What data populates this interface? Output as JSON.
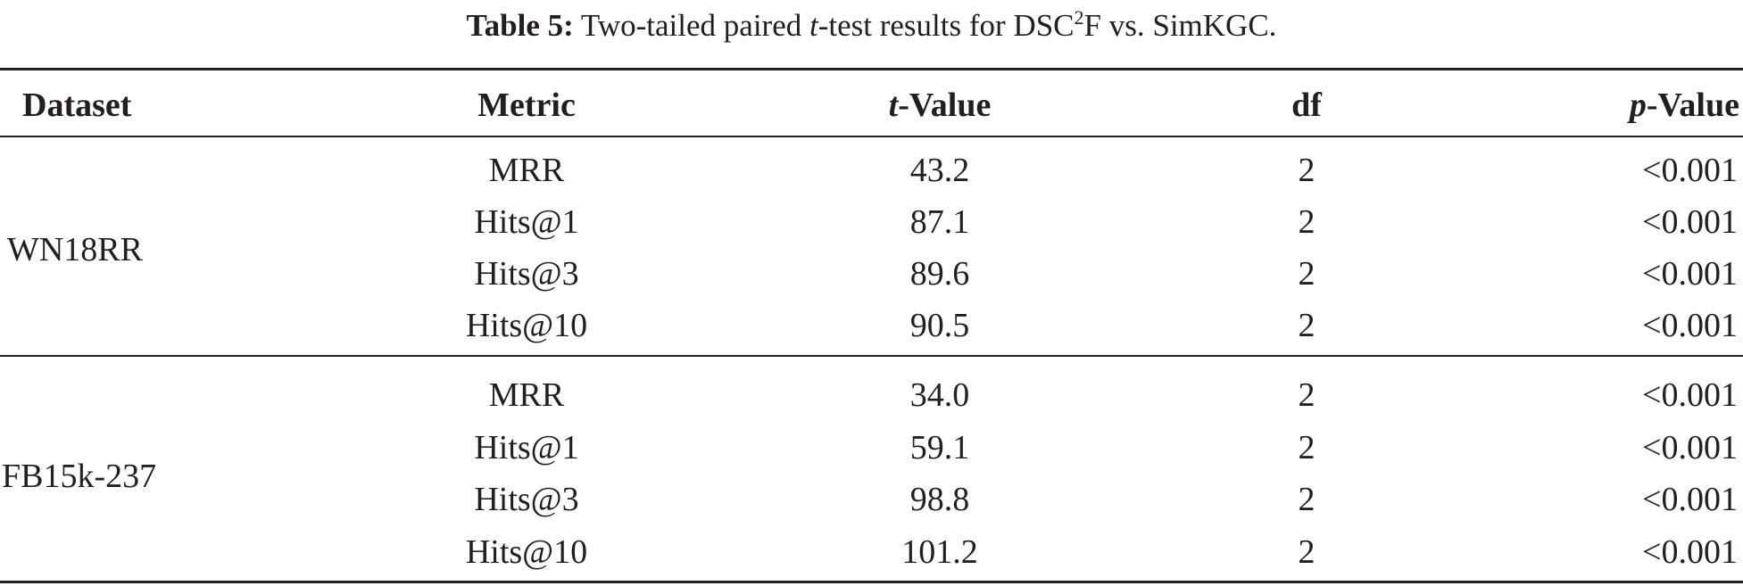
{
  "caption": {
    "label": "Table 5:",
    "text_before_italic": " Two-tailed paired ",
    "italic": "t",
    "text_after_italic": "-test results for DSC",
    "superscript": "2",
    "text_end": "F vs. SimKGC."
  },
  "table": {
    "headers": {
      "dataset": "Dataset",
      "metric": "Metric",
      "t_value_italic": "t",
      "t_value_rest": "-Value",
      "df": "df",
      "p_value_italic": "p",
      "p_value_rest": "-Value"
    },
    "groups": [
      {
        "dataset": "WN18RR",
        "rows": [
          {
            "metric": "MRR",
            "t_value": "43.2",
            "df": "2",
            "p_value": "<0.001"
          },
          {
            "metric": "Hits@1",
            "t_value": "87.1",
            "df": "2",
            "p_value": "<0.001"
          },
          {
            "metric": "Hits@3",
            "t_value": "89.6",
            "df": "2",
            "p_value": "<0.001"
          },
          {
            "metric": "Hits@10",
            "t_value": "90.5",
            "df": "2",
            "p_value": "<0.001"
          }
        ]
      },
      {
        "dataset": "FB15k-237",
        "rows": [
          {
            "metric": "MRR",
            "t_value": "34.0",
            "df": "2",
            "p_value": "<0.001"
          },
          {
            "metric": "Hits@1",
            "t_value": "59.1",
            "df": "2",
            "p_value": "<0.001"
          },
          {
            "metric": "Hits@3",
            "t_value": "98.8",
            "df": "2",
            "p_value": "<0.001"
          },
          {
            "metric": "Hits@10",
            "t_value": "101.2",
            "df": "2",
            "p_value": "<0.001"
          }
        ]
      }
    ]
  }
}
